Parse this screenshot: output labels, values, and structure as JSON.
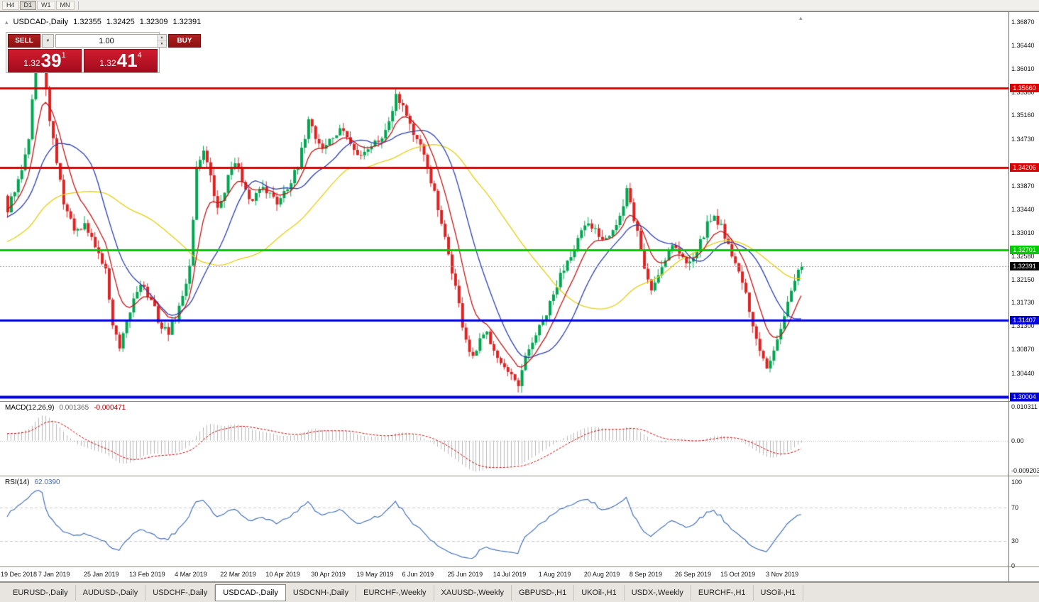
{
  "toolbar": {
    "timeframes": [
      "H4",
      "D1",
      "W1",
      "MN"
    ],
    "active": "D1"
  },
  "icons": {
    "collapse_icon": "▴",
    "dropdown_icon": "▼",
    "spin_up_icon": "▲",
    "spin_down_icon": "▼",
    "shift_marker_icon": "▴"
  },
  "chart_header": {
    "symbol": "USDCAD-,Daily",
    "open": "1.32355",
    "high": "1.32425",
    "low": "1.32309",
    "close": "1.32391"
  },
  "trade_panel": {
    "sell_label": "SELL",
    "buy_label": "BUY",
    "volume": "1.00",
    "sell_price": {
      "prefix": "1.32",
      "big": "39",
      "sup": "1"
    },
    "buy_price": {
      "prefix": "1.32",
      "big": "41",
      "sup": "4"
    }
  },
  "price_axis": {
    "labels": [
      "1.36870",
      "1.36440",
      "1.36010",
      "1.35580",
      "1.35160",
      "1.34730",
      "1.33870",
      "1.33440",
      "1.33010",
      "1.32580",
      "1.32150",
      "1.31730",
      "1.31300",
      "1.30870",
      "1.30440"
    ]
  },
  "levels": [
    {
      "label": "1.35660",
      "value": 1.3566,
      "color": "#e00000",
      "width": 3
    },
    {
      "label": "1.34206",
      "value": 1.34206,
      "color": "#e00000",
      "width": 3
    },
    {
      "label": "1.32701",
      "value": 1.32701,
      "color": "#00cc00",
      "width": 3
    },
    {
      "label": "1.31407",
      "value": 1.31407,
      "color": "#0000dd",
      "width": 3
    },
    {
      "label": "1.30004",
      "value": 1.30004,
      "color": "#0000dd",
      "width": 4
    }
  ],
  "current_price": {
    "label": "1.32391",
    "value": 1.32391,
    "color": "#000000"
  },
  "macd_panel": {
    "title": "MACD(12,26,9)",
    "value_main": "0.001365",
    "value_signal": "-0.000471",
    "axis": [
      "0.010311",
      "0.00",
      "-0.009203"
    ]
  },
  "rsi_panel": {
    "title": "RSI(14)",
    "value": "62.0390",
    "axis": [
      "100",
      "70",
      "30",
      "0"
    ],
    "levels": [
      70,
      30
    ]
  },
  "date_axis": [
    "19 Dec 2018",
    "7 Jan 2019",
    "25 Jan 2019",
    "13 Feb 2019",
    "4 Mar 2019",
    "22 Mar 2019",
    "10 Apr 2019",
    "30 Apr 2019",
    "19 May 2019",
    "6 Jun 2019",
    "25 Jun 2019",
    "14 Jul 2019",
    "1 Aug 2019",
    "20 Aug 2019",
    "8 Sep 2019",
    "26 Sep 2019",
    "15 Oct 2019",
    "3 Nov 2019"
  ],
  "tabs": {
    "items": [
      "EURUSD-,Daily",
      "AUDUSD-,Daily",
      "USDCHF-,Daily",
      "USDCAD-,Daily",
      "USDCNH-,Daily",
      "EURCHF-,Weekly",
      "XAUUSD-,Weekly",
      "GBPUSD-,H1",
      "UKOil-,H1",
      "USDX-,Weekly",
      "EURCHF-,H1",
      "USOil-,H1"
    ],
    "active": "USDCAD-,Daily"
  },
  "chart_data": {
    "type": "candlestick",
    "symbol": "USDCAD-",
    "timeframe": "Daily",
    "count": 228,
    "seed": 42,
    "pre_count": 55,
    "pre_start": 1.318,
    "pre_end": 1.3355,
    "last_close": 1.32391,
    "date_tick_indices": [
      2,
      15,
      28,
      41,
      54,
      67,
      80,
      93,
      106,
      119,
      132,
      145,
      158,
      171,
      184,
      197,
      210,
      223
    ],
    "price_axis_range": [
      1.29927,
      1.37051
    ],
    "macd_axis_range": [
      -0.0107,
      0.0118
    ],
    "rsi_axis_range": [
      -1,
      107
    ],
    "anchors": [
      [
        0,
        1.3345
      ],
      [
        3,
        1.3392
      ],
      [
        6,
        1.348
      ],
      [
        8,
        1.3615
      ],
      [
        9,
        1.3652
      ],
      [
        10,
        1.3638
      ],
      [
        12,
        1.3502
      ],
      [
        14,
        1.3432
      ],
      [
        16,
        1.3358
      ],
      [
        18,
        1.3322
      ],
      [
        20,
        1.33
      ],
      [
        22,
        1.3312
      ],
      [
        24,
        1.3292
      ],
      [
        26,
        1.3262
      ],
      [
        28,
        1.3232
      ],
      [
        30,
        1.3132
      ],
      [
        32,
        1.3086
      ],
      [
        34,
        1.3132
      ],
      [
        36,
        1.318
      ],
      [
        38,
        1.3212
      ],
      [
        40,
        1.3186
      ],
      [
        42,
        1.316
      ],
      [
        44,
        1.3126
      ],
      [
        46,
        1.312
      ],
      [
        48,
        1.3146
      ],
      [
        50,
        1.3182
      ],
      [
        52,
        1.3242
      ],
      [
        54,
        1.3418
      ],
      [
        56,
        1.3456
      ],
      [
        58,
        1.34
      ],
      [
        60,
        1.3342
      ],
      [
        62,
        1.338
      ],
      [
        64,
        1.3422
      ],
      [
        65,
        1.3436
      ],
      [
        67,
        1.3392
      ],
      [
        69,
        1.3356
      ],
      [
        71,
        1.3372
      ],
      [
        73,
        1.339
      ],
      [
        75,
        1.3371
      ],
      [
        77,
        1.3356
      ],
      [
        79,
        1.338
      ],
      [
        81,
        1.3396
      ],
      [
        83,
        1.342
      ],
      [
        85,
        1.3478
      ],
      [
        86,
        1.3514
      ],
      [
        88,
        1.3476
      ],
      [
        90,
        1.3456
      ],
      [
        92,
        1.347
      ],
      [
        94,
        1.3482
      ],
      [
        96,
        1.349
      ],
      [
        98,
        1.3462
      ],
      [
        100,
        1.3442
      ],
      [
        102,
        1.3452
      ],
      [
        104,
        1.3462
      ],
      [
        106,
        1.3472
      ],
      [
        108,
        1.3486
      ],
      [
        110,
        1.353
      ],
      [
        111,
        1.3558
      ],
      [
        112,
        1.3546
      ],
      [
        114,
        1.352
      ],
      [
        116,
        1.3482
      ],
      [
        118,
        1.3456
      ],
      [
        120,
        1.3422
      ],
      [
        122,
        1.3372
      ],
      [
        124,
        1.3312
      ],
      [
        126,
        1.3262
      ],
      [
        128,
        1.3202
      ],
      [
        130,
        1.3132
      ],
      [
        132,
        1.3082
      ],
      [
        133,
        1.3068
      ],
      [
        135,
        1.3102
      ],
      [
        137,
        1.3116
      ],
      [
        139,
        1.3092
      ],
      [
        141,
        1.3062
      ],
      [
        143,
        1.3042
      ],
      [
        145,
        1.3026
      ],
      [
        146,
        1.3018
      ],
      [
        148,
        1.307
      ],
      [
        150,
        1.3102
      ],
      [
        152,
        1.3126
      ],
      [
        154,
        1.3152
      ],
      [
        156,
        1.3186
      ],
      [
        158,
        1.3222
      ],
      [
        160,
        1.3252
      ],
      [
        162,
        1.3276
      ],
      [
        164,
        1.3302
      ],
      [
        166,
        1.3312
      ],
      [
        168,
        1.3306
      ],
      [
        170,
        1.3292
      ],
      [
        172,
        1.3302
      ],
      [
        174,
        1.3316
      ],
      [
        176,
        1.3346
      ],
      [
        177,
        1.3378
      ],
      [
        178,
        1.3352
      ],
      [
        180,
        1.3302
      ],
      [
        182,
        1.3236
      ],
      [
        184,
        1.3196
      ],
      [
        186,
        1.3226
      ],
      [
        188,
        1.3256
      ],
      [
        190,
        1.3282
      ],
      [
        192,
        1.3262
      ],
      [
        194,
        1.3246
      ],
      [
        196,
        1.3262
      ],
      [
        198,
        1.3282
      ],
      [
        200,
        1.3316
      ],
      [
        202,
        1.3332
      ],
      [
        204,
        1.3312
      ],
      [
        206,
        1.3282
      ],
      [
        208,
        1.3242
      ],
      [
        210,
        1.3216
      ],
      [
        212,
        1.3152
      ],
      [
        214,
        1.3102
      ],
      [
        216,
        1.3066
      ],
      [
        217,
        1.3052
      ],
      [
        219,
        1.3092
      ],
      [
        221,
        1.3132
      ],
      [
        223,
        1.3172
      ],
      [
        225,
        1.3212
      ],
      [
        227,
        1.32391
      ]
    ],
    "moving_averages": [
      {
        "name": "ma-slow-yellow",
        "period": 45,
        "method": "sma",
        "color": "#e3cf12"
      },
      {
        "name": "ma-mid-blue",
        "period": 18,
        "method": "sma",
        "color": "#2a3fb0"
      },
      {
        "name": "ma-fast-red",
        "period": 9,
        "method": "ema",
        "color": "#c41414"
      }
    ],
    "macd": {
      "fast": 12,
      "slow": 26,
      "signal": 9,
      "hist_color": "#b8b8b8",
      "signal_color": "#cc0000"
    },
    "rsi": {
      "period": 14,
      "color": "#4673b5"
    },
    "candle_up": "#00a651",
    "candle_down": "#e02222",
    "bid_line_color": "#9a9a9a"
  }
}
